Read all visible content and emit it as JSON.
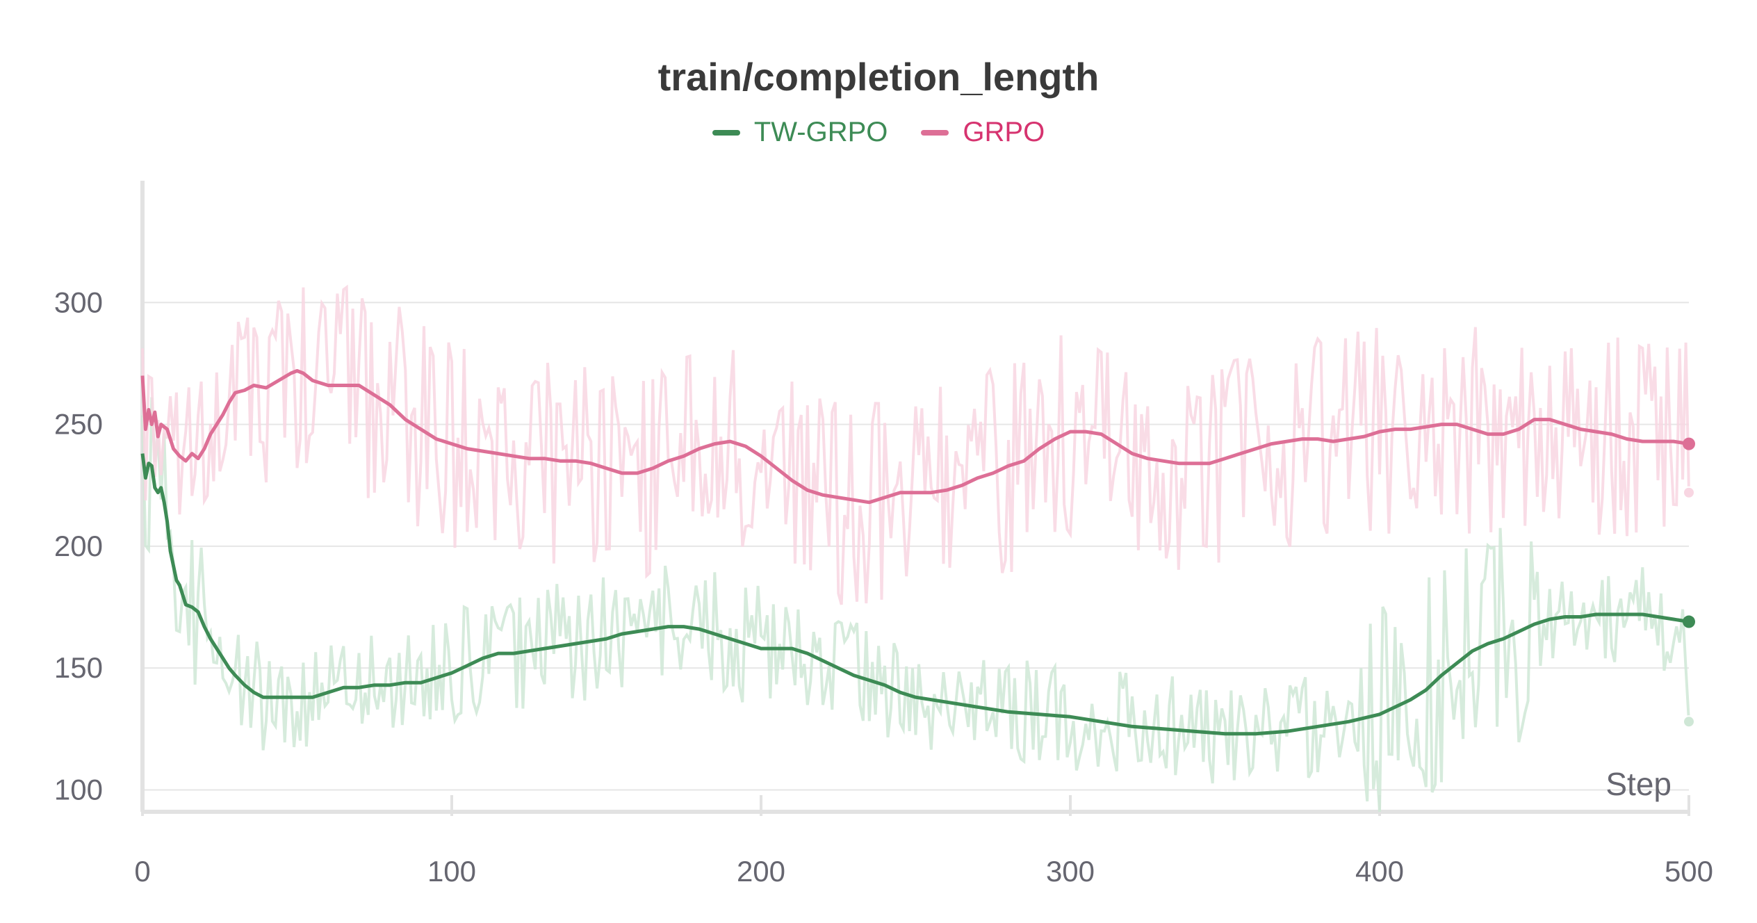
{
  "chart_data": {
    "type": "line",
    "title": "train/completion_length",
    "xlabel": "Step",
    "ylabel": "",
    "xlim": [
      0,
      500
    ],
    "ylim": [
      91,
      350
    ],
    "xticks": [
      0,
      100,
      200,
      300,
      400,
      500
    ],
    "yticks": [
      100,
      150,
      200,
      250,
      300
    ],
    "grid": true,
    "legend": "top-center",
    "series": [
      {
        "name": "TW-GRPO",
        "color": "#3d8b55",
        "raw_color": "#cfe7d6",
        "smoothed": {
          "x": [
            0,
            1,
            2,
            3,
            4,
            5,
            6,
            7,
            8,
            9,
            10,
            11,
            12,
            13,
            14,
            16,
            18,
            20,
            22,
            24,
            26,
            28,
            30,
            33,
            36,
            39,
            42,
            45,
            50,
            55,
            60,
            65,
            70,
            75,
            80,
            85,
            90,
            95,
            100,
            105,
            110,
            115,
            120,
            125,
            130,
            135,
            140,
            145,
            150,
            155,
            160,
            165,
            170,
            175,
            180,
            185,
            190,
            195,
            200,
            205,
            210,
            215,
            220,
            225,
            230,
            235,
            240,
            245,
            250,
            255,
            260,
            270,
            280,
            290,
            300,
            310,
            320,
            330,
            340,
            350,
            360,
            370,
            380,
            390,
            400,
            405,
            410,
            415,
            420,
            425,
            430,
            435,
            440,
            445,
            450,
            455,
            460,
            465,
            470,
            475,
            480,
            485,
            490,
            495,
            500
          ],
          "y": [
            238,
            228,
            234,
            233,
            224,
            222,
            224,
            218,
            210,
            198,
            192,
            186,
            184,
            180,
            176,
            175,
            173,
            167,
            162,
            158,
            154,
            150,
            147,
            143,
            140,
            138,
            138,
            138,
            138,
            138,
            140,
            142,
            142,
            143,
            143,
            144,
            144,
            146,
            148,
            151,
            154,
            156,
            156,
            157,
            158,
            159,
            160,
            161,
            162,
            164,
            165,
            166,
            167,
            167,
            166,
            164,
            162,
            160,
            158,
            158,
            158,
            156,
            153,
            150,
            147,
            145,
            143,
            140,
            138,
            137,
            136,
            134,
            132,
            131,
            130,
            128,
            126,
            125,
            124,
            123,
            123,
            124,
            126,
            128,
            131,
            134,
            137,
            141,
            147,
            152,
            157,
            160,
            162,
            165,
            168,
            170,
            171,
            171,
            172,
            172,
            172,
            172,
            171,
            170,
            169
          ]
        },
        "raw_endpoint": 128
      },
      {
        "name": "GRPO",
        "color": "#dd6f96",
        "raw_color": "#f8d6e2",
        "smoothed": {
          "x": [
            0,
            1,
            2,
            3,
            4,
            5,
            6,
            8,
            10,
            12,
            14,
            16,
            18,
            20,
            22,
            24,
            26,
            28,
            30,
            33,
            36,
            40,
            44,
            48,
            50,
            52,
            55,
            60,
            65,
            70,
            75,
            80,
            85,
            90,
            95,
            100,
            105,
            110,
            115,
            120,
            125,
            130,
            135,
            140,
            145,
            150,
            155,
            160,
            165,
            170,
            175,
            180,
            185,
            190,
            195,
            200,
            205,
            210,
            215,
            220,
            225,
            230,
            235,
            240,
            245,
            250,
            255,
            260,
            265,
            270,
            275,
            280,
            285,
            290,
            295,
            300,
            305,
            310,
            315,
            320,
            325,
            330,
            335,
            340,
            345,
            350,
            355,
            360,
            365,
            370,
            375,
            380,
            385,
            390,
            395,
            400,
            405,
            410,
            415,
            420,
            425,
            430,
            435,
            440,
            445,
            450,
            455,
            460,
            465,
            470,
            475,
            480,
            485,
            490,
            495,
            500
          ],
          "y": [
            270,
            248,
            256,
            250,
            255,
            245,
            250,
            248,
            240,
            237,
            235,
            238,
            236,
            240,
            246,
            250,
            254,
            259,
            263,
            264,
            266,
            265,
            268,
            271,
            272,
            271,
            268,
            266,
            266,
            266,
            262,
            258,
            252,
            248,
            244,
            242,
            240,
            239,
            238,
            237,
            236,
            236,
            235,
            235,
            234,
            232,
            230,
            230,
            232,
            235,
            237,
            240,
            242,
            243,
            241,
            237,
            232,
            227,
            223,
            221,
            220,
            219,
            218,
            220,
            222,
            222,
            222,
            223,
            225,
            228,
            230,
            233,
            235,
            240,
            244,
            247,
            247,
            246,
            242,
            238,
            236,
            235,
            234,
            234,
            234,
            236,
            238,
            240,
            242,
            243,
            244,
            244,
            243,
            244,
            245,
            247,
            248,
            248,
            249,
            250,
            250,
            248,
            246,
            246,
            248,
            252,
            252,
            250,
            248,
            247,
            246,
            244,
            243,
            243,
            243,
            242
          ]
        },
        "raw_endpoint": 222
      }
    ]
  }
}
